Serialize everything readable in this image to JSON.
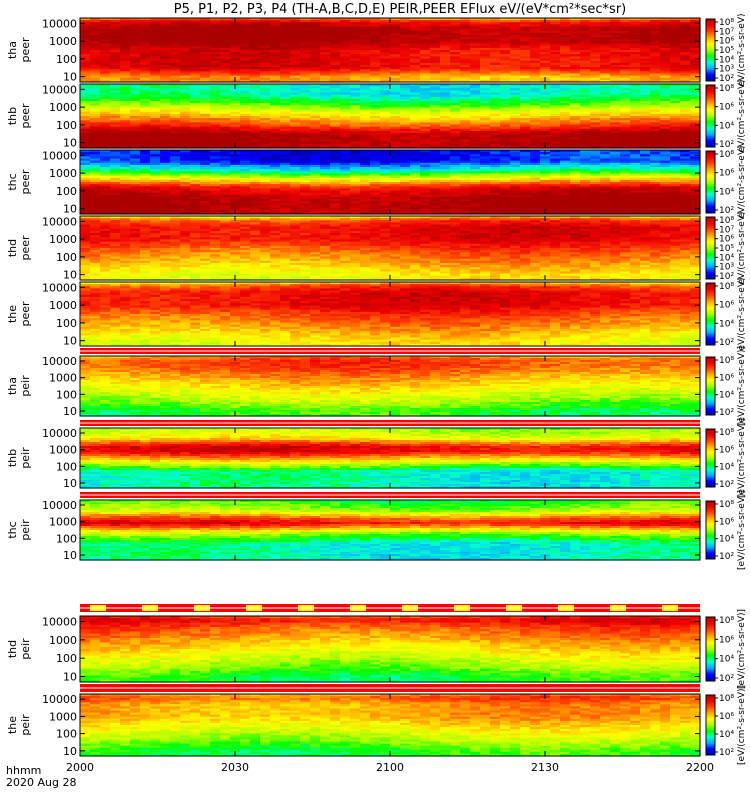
{
  "title": "P5, P1, P2, P3, P4 (TH-A,B,C,D,E) PEIR,PEER EFlux eV/(eV*cm²*sec*sr)",
  "footer": {
    "line1": "hhmm",
    "line2": "2020 Aug 28"
  },
  "colorbar_label_electrons": "eV/(cm²-s-sr-eV)",
  "colorbar_label_ions": "[eV/(cm²-s-sr-eV)]",
  "colors": {
    "colormap": [
      "#0000aa",
      "#0000ff",
      "#00aaff",
      "#00ffcc",
      "#00ff00",
      "#aaff00",
      "#ffff00",
      "#ffaa00",
      "#ff4400",
      "#ee0000",
      "#aa0000"
    ],
    "band_red": "#ff0000",
    "band_yellow": "#ffff00"
  },
  "chart_data": {
    "type": "heatmap",
    "xlabel": "hhmm",
    "x_ticks": [
      "2000",
      "2030",
      "2100",
      "2130",
      "2200"
    ],
    "x_range": [
      "20:00",
      "22:00"
    ],
    "y_scale": "log",
    "y_ticks": [
      "10",
      "100",
      "1000",
      "10000"
    ],
    "panels": [
      {
        "name": "tha peer",
        "species": "electron",
        "colorbar_ticks": [
          "10⁸",
          "10⁷",
          "10⁶",
          "10⁵",
          "10⁴",
          "10³",
          "10²"
        ],
        "profile": [
          [
            10,
            7
          ],
          [
            30,
            9
          ],
          [
            300,
            9
          ],
          [
            1000,
            10
          ],
          [
            5000,
            10
          ],
          [
            12000,
            9
          ],
          [
            20000,
            7
          ]
        ]
      },
      {
        "name": "thb peer",
        "species": "electron",
        "colorbar_ticks": [
          "10⁸",
          "10⁶",
          "10⁴",
          "10²"
        ],
        "profile": [
          [
            10,
            10
          ],
          [
            30,
            10
          ],
          [
            100,
            8
          ],
          [
            500,
            6
          ],
          [
            2000,
            4
          ],
          [
            5000,
            3
          ],
          [
            20000,
            3
          ]
        ]
      },
      {
        "name": "thc peer",
        "species": "electron",
        "colorbar_ticks": [
          "10⁸",
          "10⁶",
          "10⁴",
          "10²"
        ],
        "profile": [
          [
            10,
            10
          ],
          [
            40,
            10
          ],
          [
            150,
            9
          ],
          [
            500,
            6
          ],
          [
            1500,
            3
          ],
          [
            5000,
            1
          ],
          [
            20000,
            1
          ]
        ]
      },
      {
        "name": "thd peer",
        "species": "electron",
        "colorbar_ticks": [
          "10⁸",
          "10⁷",
          "10⁶",
          "10⁵",
          "10⁴",
          "10³",
          "10²"
        ],
        "profile": [
          [
            10,
            6
          ],
          [
            50,
            7
          ],
          [
            300,
            8
          ],
          [
            1000,
            9
          ],
          [
            5000,
            9
          ],
          [
            12000,
            8
          ],
          [
            20000,
            6
          ]
        ]
      },
      {
        "name": "the peer",
        "species": "electron",
        "colorbar_ticks": [
          "10⁸",
          "10⁶",
          "10⁴",
          "10²"
        ],
        "profile": [
          [
            10,
            6
          ],
          [
            50,
            7
          ],
          [
            300,
            8
          ],
          [
            1000,
            9
          ],
          [
            5000,
            9
          ],
          [
            12000,
            8
          ],
          [
            20000,
            6
          ]
        ]
      },
      {
        "name": "tha peir",
        "species": "ion",
        "colorbar_ticks": [
          "10⁸",
          "10⁶",
          "10⁴",
          "10²"
        ],
        "profile": [
          [
            10,
            4
          ],
          [
            40,
            5
          ],
          [
            200,
            6
          ],
          [
            1000,
            7
          ],
          [
            5000,
            8
          ],
          [
            12000,
            8
          ],
          [
            20000,
            7
          ]
        ]
      },
      {
        "name": "thb peir",
        "species": "ion",
        "colorbar_ticks": [
          "10⁸",
          "10⁶",
          "10⁴",
          "10²"
        ],
        "profile": [
          [
            10,
            3
          ],
          [
            50,
            3
          ],
          [
            200,
            6
          ],
          [
            800,
            9
          ],
          [
            1500,
            9
          ],
          [
            5000,
            6
          ],
          [
            20000,
            5
          ]
        ]
      },
      {
        "name": "thc peir",
        "species": "ion",
        "colorbar_ticks": [
          "10⁸",
          "10⁶",
          "10⁴",
          "10²"
        ],
        "profile": [
          [
            10,
            3
          ],
          [
            50,
            3
          ],
          [
            200,
            5
          ],
          [
            800,
            9
          ],
          [
            1500,
            8
          ],
          [
            5000,
            5
          ],
          [
            20000,
            4
          ]
        ]
      },
      {
        "name": "thd peir",
        "species": "ion",
        "colorbar_ticks": [
          "10⁸",
          "10⁶",
          "10⁴",
          "10²"
        ],
        "profile": [
          [
            10,
            4
          ],
          [
            40,
            5
          ],
          [
            200,
            6
          ],
          [
            1000,
            7
          ],
          [
            5000,
            8
          ],
          [
            12000,
            9
          ],
          [
            20000,
            8
          ]
        ]
      },
      {
        "name": "the peir",
        "species": "ion",
        "colorbar_ticks": [
          "10⁸",
          "10⁶",
          "10⁴",
          "10²"
        ],
        "profile": [
          [
            10,
            4
          ],
          [
            40,
            5
          ],
          [
            200,
            6
          ],
          [
            1000,
            7
          ],
          [
            5000,
            7
          ],
          [
            12000,
            8
          ],
          [
            20000,
            7
          ]
        ]
      }
    ]
  }
}
